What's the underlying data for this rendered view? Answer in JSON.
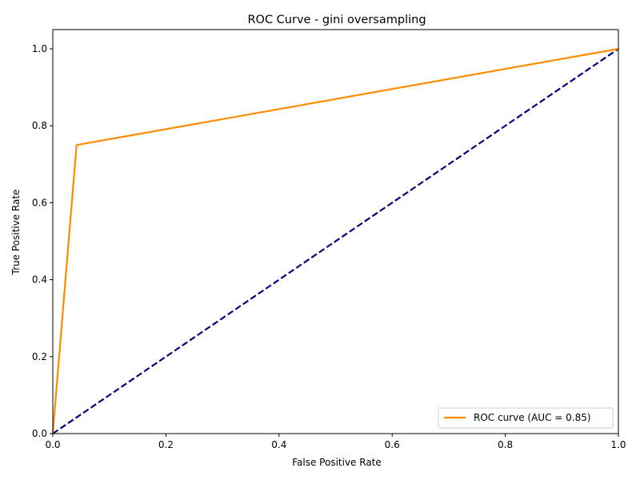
{
  "chart_data": {
    "type": "line",
    "title": "ROC Curve - gini oversampling",
    "xlabel": "False Positive Rate",
    "ylabel": "True Positive Rate",
    "xlim": [
      0.0,
      1.0
    ],
    "ylim": [
      0.0,
      1.05
    ],
    "xticks": [
      0.0,
      0.2,
      0.4,
      0.6,
      0.8,
      1.0
    ],
    "yticks": [
      0.0,
      0.2,
      0.4,
      0.6,
      0.8,
      1.0
    ],
    "xtick_labels": [
      "0.0",
      "0.2",
      "0.4",
      "0.6",
      "0.8",
      "1.0"
    ],
    "ytick_labels": [
      "0.0",
      "0.2",
      "0.4",
      "0.6",
      "0.8",
      "1.0"
    ],
    "grid": false,
    "legend_position": "lower-right",
    "series": [
      {
        "name": "ROC curve (AUC = 0.85)",
        "color": "#ff8c00",
        "style": "solid",
        "x": [
          0.0,
          0.042,
          1.0
        ],
        "y": [
          0.0,
          0.75,
          1.0
        ]
      },
      {
        "color": "#000080",
        "style": "dashed",
        "x": [
          0.0,
          1.0
        ],
        "y": [
          0.0,
          1.0
        ]
      }
    ]
  }
}
